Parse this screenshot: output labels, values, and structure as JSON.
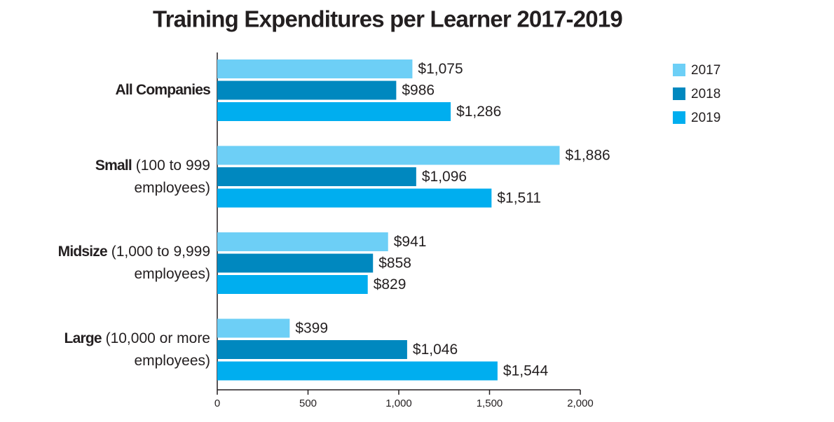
{
  "chart_data": {
    "type": "bar",
    "orientation": "horizontal",
    "title": "Training Expenditures per Learner 2017-2019",
    "categories": [
      "All Companies",
      "Small",
      "Midsize",
      "Large"
    ],
    "category_details": [
      null,
      "(100 to 999 employees)",
      "(1,000 to 9,999 employees)",
      "(10,000 or more employees)"
    ],
    "series": [
      {
        "name": "2017",
        "color": "#6dcff6",
        "values": [
          1075,
          1886,
          941,
          399
        ],
        "value_labels": [
          "$1,075",
          "$1,886",
          "$941",
          "$399"
        ]
      },
      {
        "name": "2018",
        "color": "#0088bf",
        "values": [
          986,
          1096,
          858,
          1046
        ],
        "value_labels": [
          "$986",
          "$1,096",
          "$858",
          "$1,046"
        ]
      },
      {
        "name": "2019",
        "color": "#00aeef",
        "values": [
          1286,
          1511,
          829,
          1544
        ],
        "value_labels": [
          "$1,286",
          "$1,511",
          "$829",
          "$1,544"
        ]
      }
    ],
    "xlim": [
      0,
      2000
    ],
    "xticks": [
      0,
      500,
      {
        "value": 1000,
        "label": "1,000"
      },
      {
        "value": 1500,
        "label": "1,500"
      },
      {
        "value": 2000,
        "label": "2,000"
      }
    ],
    "legend": "top-right"
  }
}
